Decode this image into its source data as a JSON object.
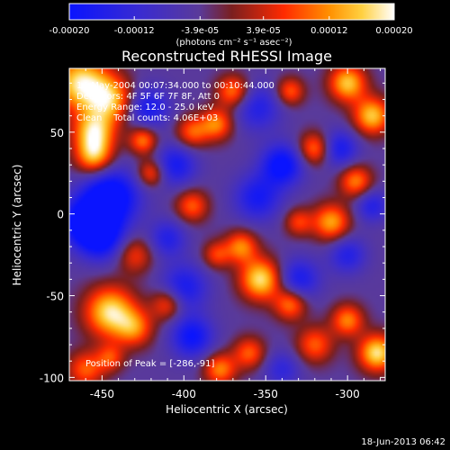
{
  "chart_data": {
    "type": "heatmap",
    "title": "Reconstructed RHESSI Image",
    "xlabel": "Heliocentric X (arcsec)",
    "ylabel": "Heliocentric Y (arcsec)",
    "xlim": [
      -470,
      -277
    ],
    "ylim": [
      -102,
      89
    ],
    "xticks": [
      -450,
      -400,
      -350,
      -300
    ],
    "xtick_labels": [
      "-450",
      "-400",
      "-350",
      "-300"
    ],
    "yticks": [
      -100,
      -50,
      0,
      50
    ],
    "ytick_labels": [
      "-100",
      "-50",
      "0",
      "50"
    ],
    "colorbar": {
      "range": [
        -0.0002,
        0.0002
      ],
      "tick_values": [
        -0.0002,
        -0.00012,
        -3.9e-05,
        3.9e-05,
        0.00012,
        0.0002
      ],
      "tick_labels": [
        "-0.00020",
        "-0.00012",
        "-3.9e-05",
        "3.9e-05",
        "0.00012",
        "0.00020"
      ],
      "unit_label": "(photons cm⁻² s⁻¹ asec⁻²)",
      "colors": [
        "#0a14ff",
        "#3a2bd0",
        "#5a3a9a",
        "#7a1f1f",
        "#ff2a00",
        "#ff9000",
        "#ffd040",
        "#ffffff"
      ]
    },
    "annotations": [
      "14-May-2004 00:07:34.000 to 00:10:44.000",
      "Detectors: 4F 5F 6F 7F 8F, Att 0",
      "Energy Range: 12.0 - 25.0 keV",
      "Clean    Total counts: 4.06E+03"
    ],
    "peak_label": "Position of Peak = [-286,-91]",
    "peak": {
      "x": -286,
      "y": -91
    },
    "blobs": [
      {
        "x": -463,
        "y": 80,
        "v": 1.0,
        "s": 12
      },
      {
        "x": -445,
        "y": 70,
        "v": 0.8,
        "s": 10
      },
      {
        "x": -455,
        "y": 50,
        "v": 0.9,
        "s": 9
      },
      {
        "x": -455,
        "y": 35,
        "v": 0.8,
        "s": 8
      },
      {
        "x": -445,
        "y": 10,
        "v": -1.0,
        "s": 12
      },
      {
        "x": -460,
        "y": -5,
        "v": -0.9,
        "s": 10
      },
      {
        "x": -450,
        "y": -15,
        "v": -0.7,
        "s": 10
      },
      {
        "x": -422,
        "y": 65,
        "v": -0.6,
        "s": 9
      },
      {
        "x": -425,
        "y": 45,
        "v": 0.7,
        "s": 6
      },
      {
        "x": -420,
        "y": 25,
        "v": 0.6,
        "s": 6
      },
      {
        "x": -405,
        "y": 30,
        "v": -0.6,
        "s": 9
      },
      {
        "x": -395,
        "y": 50,
        "v": 0.6,
        "s": 7
      },
      {
        "x": -380,
        "y": 55,
        "v": 0.7,
        "s": 7
      },
      {
        "x": -370,
        "y": 75,
        "v": 0.7,
        "s": 7
      },
      {
        "x": -355,
        "y": 65,
        "v": -0.5,
        "s": 10
      },
      {
        "x": -335,
        "y": 75,
        "v": 0.6,
        "s": 6
      },
      {
        "x": -300,
        "y": 80,
        "v": 0.9,
        "s": 8
      },
      {
        "x": -285,
        "y": 60,
        "v": 0.9,
        "s": 8
      },
      {
        "x": -320,
        "y": 40,
        "v": 0.7,
        "s": 7
      },
      {
        "x": -340,
        "y": 30,
        "v": -0.8,
        "s": 9
      },
      {
        "x": -305,
        "y": 40,
        "v": -0.6,
        "s": 8
      },
      {
        "x": -295,
        "y": 20,
        "v": 0.7,
        "s": 7
      },
      {
        "x": -310,
        "y": -5,
        "v": 0.8,
        "s": 8
      },
      {
        "x": -330,
        "y": -5,
        "v": 0.5,
        "s": 6
      },
      {
        "x": -285,
        "y": 5,
        "v": -0.5,
        "s": 7
      },
      {
        "x": -395,
        "y": 5,
        "v": 0.6,
        "s": 7
      },
      {
        "x": -380,
        "y": -25,
        "v": 0.5,
        "s": 6
      },
      {
        "x": -430,
        "y": -25,
        "v": 0.5,
        "s": 8
      },
      {
        "x": -400,
        "y": -45,
        "v": -0.6,
        "s": 10
      },
      {
        "x": -410,
        "y": -55,
        "v": 0.6,
        "s": 7
      },
      {
        "x": -353,
        "y": -40,
        "v": 1.0,
        "s": 9
      },
      {
        "x": -365,
        "y": -20,
        "v": 0.7,
        "s": 7
      },
      {
        "x": -330,
        "y": -40,
        "v": -0.6,
        "s": 9
      },
      {
        "x": -335,
        "y": -55,
        "v": 0.7,
        "s": 7
      },
      {
        "x": -445,
        "y": -60,
        "v": 1.0,
        "s": 11
      },
      {
        "x": -430,
        "y": -70,
        "v": 0.6,
        "s": 8
      },
      {
        "x": -395,
        "y": -75,
        "v": -0.7,
        "s": 9
      },
      {
        "x": -378,
        "y": -95,
        "v": 0.7,
        "s": 7
      },
      {
        "x": -360,
        "y": -85,
        "v": 0.6,
        "s": 7
      },
      {
        "x": -320,
        "y": -80,
        "v": 0.6,
        "s": 8
      },
      {
        "x": -300,
        "y": -65,
        "v": 0.7,
        "s": 7
      },
      {
        "x": -282,
        "y": -85,
        "v": 1.0,
        "s": 8
      },
      {
        "x": -460,
        "y": -95,
        "v": 0.6,
        "s": 8
      },
      {
        "x": -445,
        "y": -88,
        "v": 0.5,
        "s": 6
      },
      {
        "x": -300,
        "y": -25,
        "v": -0.5,
        "s": 8
      },
      {
        "x": -355,
        "y": 10,
        "v": -0.6,
        "s": 10
      },
      {
        "x": -410,
        "y": -15,
        "v": -0.5,
        "s": 8
      },
      {
        "x": -340,
        "y": -95,
        "v": -0.4,
        "s": 8
      }
    ]
  },
  "footer": {
    "date": "18-Jun-2013 06:42"
  }
}
